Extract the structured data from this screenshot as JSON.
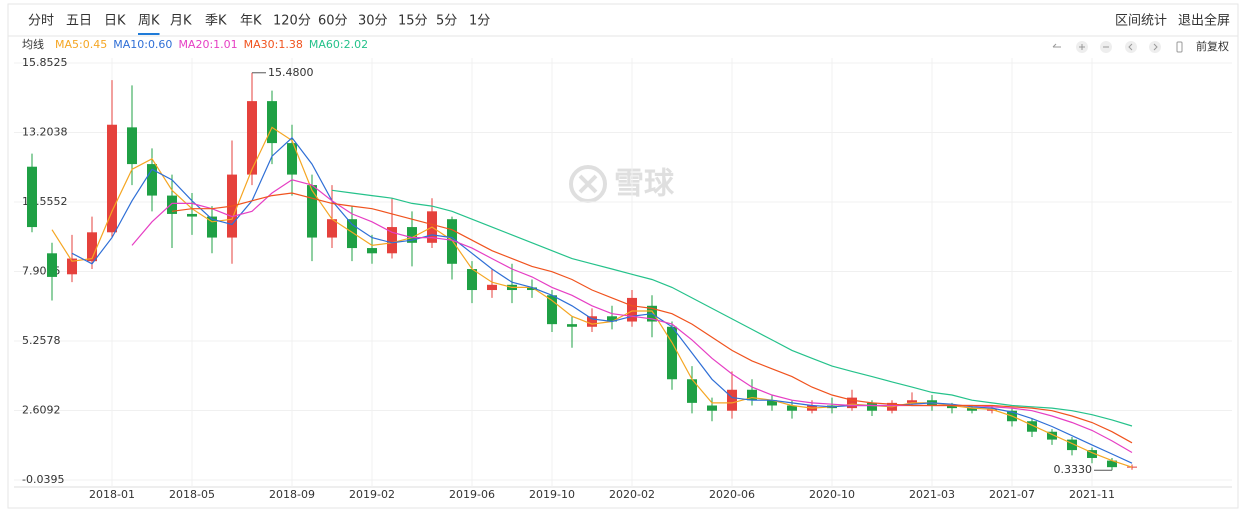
{
  "toolbar": {
    "tabs": [
      "分时",
      "五日",
      "日K",
      "周K",
      "月K",
      "季K",
      "年K",
      "120分",
      "60分",
      "30分",
      "15分",
      "5分",
      "1分"
    ],
    "active": "周K",
    "actions": [
      "区间统计",
      "退出全屏"
    ]
  },
  "ma_label": "均线",
  "adjust": "前复权",
  "watermark": "雪球",
  "chart_data": {
    "type": "candlestick",
    "categories": [
      null,
      null,
      null,
      null,
      "2018-01",
      null,
      null,
      null,
      "2018-05",
      null,
      null,
      null,
      null,
      "2018-09",
      null,
      null,
      null,
      "2019-02",
      null,
      null,
      null,
      null,
      "2019-06",
      null,
      null,
      null,
      "2019-10",
      null,
      null,
      null,
      "2020-02",
      null,
      null,
      null,
      null,
      "2020-06",
      null,
      null,
      null,
      null,
      "2020-10",
      null,
      null,
      null,
      null,
      "2021-03",
      null,
      null,
      null,
      "2021-07",
      null,
      null,
      null,
      "2021-11",
      null,
      null
    ],
    "candles": {
      "open": [
        11.9,
        8.6,
        7.8,
        8.3,
        9.4,
        13.4,
        12.0,
        10.8,
        10.1,
        10.0,
        9.2,
        11.6,
        14.4,
        12.8,
        11.2,
        9.2,
        9.9,
        8.8,
        8.6,
        9.6,
        9.0,
        9.9,
        8.0,
        7.2,
        7.4,
        7.3,
        7.0,
        5.9,
        5.8,
        6.2,
        6.0,
        6.6,
        5.8,
        3.8,
        2.8,
        2.6,
        3.4,
        3.0,
        2.8,
        2.6,
        2.8,
        2.7,
        2.9,
        2.6,
        2.9,
        3.0,
        2.8,
        2.7,
        2.6,
        2.6,
        2.2,
        1.8,
        1.5,
        1.1,
        0.7,
        0.45
      ],
      "high": [
        12.4,
        9.0,
        9.3,
        10.0,
        15.2,
        15.0,
        12.6,
        11.6,
        10.9,
        10.4,
        12.9,
        15.48,
        14.8,
        13.5,
        11.6,
        11.2,
        10.4,
        9.3,
        10.7,
        10.2,
        10.7,
        10.0,
        8.3,
        8.0,
        8.2,
        7.6,
        7.2,
        6.2,
        6.5,
        6.6,
        7.2,
        7.0,
        6.0,
        4.3,
        3.1,
        4.1,
        3.8,
        3.2,
        3.0,
        3.0,
        3.1,
        3.4,
        3.0,
        3.0,
        3.3,
        3.2,
        2.9,
        2.8,
        2.8,
        2.7,
        2.3,
        1.9,
        1.6,
        1.2,
        0.8,
        0.55
      ],
      "low": [
        9.4,
        6.8,
        7.5,
        8.0,
        9.2,
        11.2,
        10.2,
        8.8,
        9.3,
        8.6,
        8.2,
        11.2,
        12.0,
        10.8,
        8.3,
        8.8,
        8.3,
        8.2,
        8.4,
        8.1,
        8.8,
        7.6,
        6.7,
        6.9,
        6.7,
        6.9,
        5.6,
        5.0,
        5.6,
        5.7,
        5.8,
        5.4,
        3.4,
        2.5,
        2.2,
        2.3,
        2.8,
        2.6,
        2.3,
        2.5,
        2.5,
        2.6,
        2.4,
        2.5,
        2.8,
        2.6,
        2.5,
        2.5,
        2.5,
        2.0,
        1.6,
        1.3,
        0.9,
        0.6,
        0.333,
        0.35
      ],
      "close": [
        9.6,
        7.7,
        8.4,
        9.4,
        13.5,
        12.0,
        10.8,
        10.1,
        10.0,
        9.2,
        11.6,
        14.4,
        12.8,
        11.6,
        9.2,
        9.9,
        8.8,
        8.6,
        9.6,
        9.0,
        10.2,
        8.2,
        7.2,
        7.4,
        7.2,
        7.2,
        5.9,
        5.8,
        6.2,
        6.0,
        6.9,
        6.0,
        3.8,
        2.9,
        2.6,
        3.4,
        3.0,
        2.8,
        2.6,
        2.8,
        2.7,
        3.1,
        2.6,
        2.9,
        3.0,
        2.8,
        2.7,
        2.6,
        2.65,
        2.2,
        1.8,
        1.5,
        1.1,
        0.8,
        0.45,
        0.47
      ]
    },
    "up_color": "#e5413c",
    "down_color": "#1fa045",
    "series": [
      {
        "name": "MA5:0.45",
        "color": "#f5a623",
        "values": [
          null,
          9.5,
          8.3,
          8.4,
          10.2,
          11.8,
          12.2,
          11.0,
          10.3,
          9.8,
          9.9,
          11.8,
          13.4,
          12.9,
          11.0,
          9.9,
          9.4,
          8.9,
          9.0,
          9.2,
          9.6,
          9.1,
          8.0,
          7.5,
          7.3,
          7.3,
          6.8,
          6.2,
          5.9,
          6.0,
          6.4,
          6.4,
          5.2,
          3.8,
          2.9,
          2.9,
          3.1,
          3.0,
          2.8,
          2.7,
          2.75,
          2.85,
          2.8,
          2.75,
          2.9,
          2.9,
          2.8,
          2.7,
          2.65,
          2.4,
          2.05,
          1.7,
          1.35,
          1.0,
          0.7,
          0.45
        ]
      },
      {
        "name": "MA10:0.60",
        "color": "#2f6fd6",
        "values": [
          null,
          null,
          8.6,
          8.2,
          9.2,
          10.6,
          11.8,
          11.4,
          10.6,
          9.9,
          9.7,
          10.6,
          12.3,
          13.0,
          12.0,
          10.6,
          9.7,
          9.2,
          9.0,
          9.1,
          9.3,
          9.2,
          8.6,
          8.0,
          7.5,
          7.3,
          7.0,
          6.6,
          6.1,
          6.0,
          6.2,
          6.3,
          5.8,
          4.8,
          3.8,
          3.1,
          3.0,
          3.0,
          2.9,
          2.8,
          2.75,
          2.8,
          2.8,
          2.8,
          2.85,
          2.9,
          2.85,
          2.75,
          2.7,
          2.55,
          2.3,
          2.0,
          1.65,
          1.3,
          0.95,
          0.6
        ]
      },
      {
        "name": "MA20:1.01",
        "color": "#e63fc4",
        "values": [
          null,
          null,
          null,
          null,
          null,
          8.9,
          9.8,
          10.5,
          10.5,
          10.3,
          10.0,
          10.2,
          10.9,
          11.4,
          11.2,
          10.6,
          10.1,
          9.8,
          9.4,
          9.2,
          9.2,
          9.1,
          8.8,
          8.4,
          8.0,
          7.7,
          7.3,
          7.0,
          6.6,
          6.3,
          6.2,
          6.1,
          5.9,
          5.3,
          4.6,
          4.0,
          3.5,
          3.2,
          3.0,
          2.9,
          2.85,
          2.8,
          2.8,
          2.8,
          2.8,
          2.8,
          2.8,
          2.8,
          2.75,
          2.7,
          2.6,
          2.4,
          2.15,
          1.85,
          1.45,
          1.01
        ]
      },
      {
        "name": "MA30:1.38",
        "color": "#f0531e",
        "values": [
          null,
          null,
          null,
          null,
          null,
          null,
          null,
          10.2,
          10.3,
          10.3,
          10.4,
          10.6,
          10.8,
          10.9,
          10.7,
          10.5,
          10.4,
          10.3,
          10.1,
          9.9,
          9.7,
          9.5,
          9.1,
          8.7,
          8.4,
          8.1,
          7.9,
          7.6,
          7.2,
          6.9,
          6.6,
          6.5,
          6.3,
          5.9,
          5.4,
          4.9,
          4.5,
          4.2,
          3.9,
          3.5,
          3.2,
          3.0,
          2.9,
          2.85,
          2.8,
          2.8,
          2.8,
          2.8,
          2.8,
          2.75,
          2.7,
          2.6,
          2.4,
          2.15,
          1.8,
          1.38
        ]
      },
      {
        "name": "MA60:2.02",
        "color": "#25c28b",
        "values": [
          null,
          null,
          null,
          null,
          null,
          null,
          null,
          null,
          null,
          null,
          null,
          null,
          null,
          null,
          null,
          11.0,
          10.9,
          10.8,
          10.7,
          10.5,
          10.4,
          10.2,
          9.9,
          9.6,
          9.3,
          9.0,
          8.7,
          8.4,
          8.2,
          8.0,
          7.8,
          7.6,
          7.3,
          6.9,
          6.5,
          6.1,
          5.7,
          5.3,
          4.9,
          4.6,
          4.3,
          4.1,
          3.9,
          3.7,
          3.5,
          3.3,
          3.2,
          3.0,
          2.9,
          2.8,
          2.75,
          2.7,
          2.6,
          2.45,
          2.25,
          2.02
        ]
      }
    ],
    "ylim": [
      -0.0395,
      15.8525
    ],
    "yticks": [
      15.8525,
      13.2038,
      10.5552,
      7.9065,
      5.2578,
      2.6092,
      -0.0395
    ],
    "grid": true,
    "high_label": "15.4800",
    "low_label": "0.3330"
  }
}
